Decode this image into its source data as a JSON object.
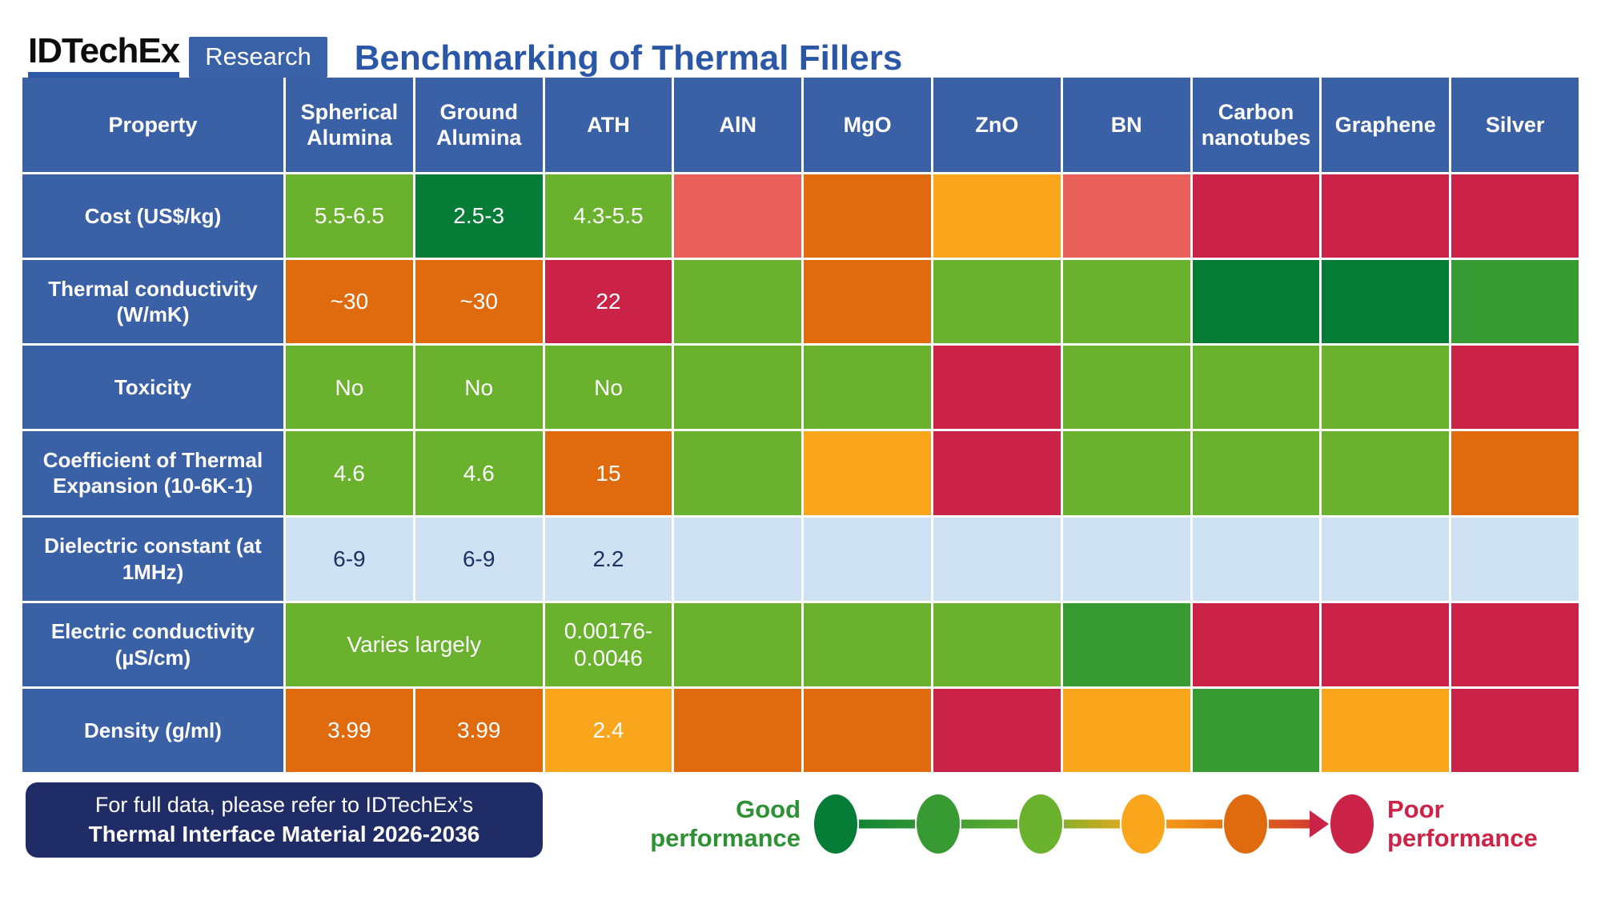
{
  "logo": {
    "brand": "IDTechEx",
    "badge": "Research"
  },
  "title": "Benchmarking of Thermal Fillers",
  "colors": {
    "dgreen": "#067d36",
    "mgreen": "#389a32",
    "lgreen": "#6ab22d",
    "amber": "#faa61d",
    "orange": "#e06b0f",
    "salmon": "#e9605b",
    "crimson": "#cb2347",
    "lblue": "#cfe2f4",
    "headerBlue": "#3a60a6",
    "titleBlue": "#2b57a8",
    "footerNavy": "#202c66",
    "lightCellText": "#1b3263",
    "goodText": "#2e9133",
    "poorText": "#cc2347"
  },
  "chart_data": {
    "type": "heatmap",
    "title": "Benchmarking of Thermal Fillers",
    "legend": "color scale from good performance (dark green) to poor performance (crimson)",
    "columns": [
      "Property",
      "Spherical Alumina",
      "Ground Alumina",
      "ATH",
      "AlN",
      "MgO",
      "ZnO",
      "BN",
      "Carbon nanotubes",
      "Graphene",
      "Silver"
    ],
    "rows": [
      {
        "label": "Cost (US$/kg)",
        "cells": [
          {
            "v": "5.5-6.5",
            "c": "lgreen"
          },
          {
            "v": "2.5-3",
            "c": "dgreen"
          },
          {
            "v": "4.3-5.5",
            "c": "lgreen"
          },
          {
            "c": "salmon"
          },
          {
            "c": "orange"
          },
          {
            "c": "amber"
          },
          {
            "c": "salmon"
          },
          {
            "c": "crimson"
          },
          {
            "c": "crimson"
          },
          {
            "c": "crimson"
          }
        ]
      },
      {
        "label": "Thermal conductivity (W/mK)",
        "cells": [
          {
            "v": "~30",
            "c": "orange"
          },
          {
            "v": "~30",
            "c": "orange"
          },
          {
            "v": "22",
            "c": "crimson"
          },
          {
            "c": "lgreen"
          },
          {
            "c": "orange"
          },
          {
            "c": "lgreen"
          },
          {
            "c": "lgreen"
          },
          {
            "c": "dgreen"
          },
          {
            "c": "dgreen"
          },
          {
            "c": "mgreen"
          }
        ]
      },
      {
        "label": "Toxicity",
        "cells": [
          {
            "v": "No",
            "c": "lgreen"
          },
          {
            "v": "No",
            "c": "lgreen"
          },
          {
            "v": "No",
            "c": "lgreen"
          },
          {
            "c": "lgreen"
          },
          {
            "c": "lgreen"
          },
          {
            "c": "crimson"
          },
          {
            "c": "lgreen"
          },
          {
            "c": "lgreen"
          },
          {
            "c": "lgreen"
          },
          {
            "c": "crimson"
          }
        ]
      },
      {
        "label": "Coefficient of Thermal Expansion (10-6K-1)",
        "cells": [
          {
            "v": "4.6",
            "c": "lgreen"
          },
          {
            "v": "4.6",
            "c": "lgreen"
          },
          {
            "v": "15",
            "c": "orange"
          },
          {
            "c": "lgreen"
          },
          {
            "c": "amber"
          },
          {
            "c": "crimson"
          },
          {
            "c": "lgreen"
          },
          {
            "c": "lgreen"
          },
          {
            "c": "lgreen"
          },
          {
            "c": "orange"
          }
        ]
      },
      {
        "label": "Dielectric constant (at 1MHz)",
        "cells": [
          {
            "v": "6-9",
            "c": "lblue"
          },
          {
            "v": "6-9",
            "c": "lblue"
          },
          {
            "v": "2.2",
            "c": "lblue"
          },
          {
            "c": "lblue"
          },
          {
            "c": "lblue"
          },
          {
            "c": "lblue"
          },
          {
            "c": "lblue"
          },
          {
            "c": "lblue"
          },
          {
            "c": "lblue"
          },
          {
            "c": "lblue"
          }
        ]
      },
      {
        "label": "Electric conductivity (µS/cm)",
        "cells": [
          {
            "v": "Varies largely",
            "c": "lgreen",
            "span": 2
          },
          {
            "v": "0.00176-0.0046",
            "c": "lgreen"
          },
          {
            "c": "lgreen"
          },
          {
            "c": "lgreen"
          },
          {
            "c": "lgreen"
          },
          {
            "c": "mgreen"
          },
          {
            "c": "crimson"
          },
          {
            "c": "crimson"
          },
          {
            "c": "crimson"
          }
        ]
      },
      {
        "label": "Density (g/ml)",
        "cells": [
          {
            "v": "3.99",
            "c": "orange"
          },
          {
            "v": "3.99",
            "c": "orange"
          },
          {
            "v": "2.4",
            "c": "amber"
          },
          {
            "c": "orange"
          },
          {
            "c": "orange"
          },
          {
            "c": "crimson"
          },
          {
            "c": "amber"
          },
          {
            "c": "mgreen"
          },
          {
            "c": "amber"
          },
          {
            "c": "crimson"
          }
        ]
      }
    ]
  },
  "footer": {
    "line1": "For full data, please refer to IDTechEx’s",
    "line2": "Thermal Interface Material 2026-2036"
  },
  "legend": {
    "good_label": "Good performance",
    "poor_label": "Poor performance",
    "scale": [
      "dgreen",
      "mgreen",
      "lgreen",
      "amber",
      "orange",
      "crimson"
    ]
  }
}
